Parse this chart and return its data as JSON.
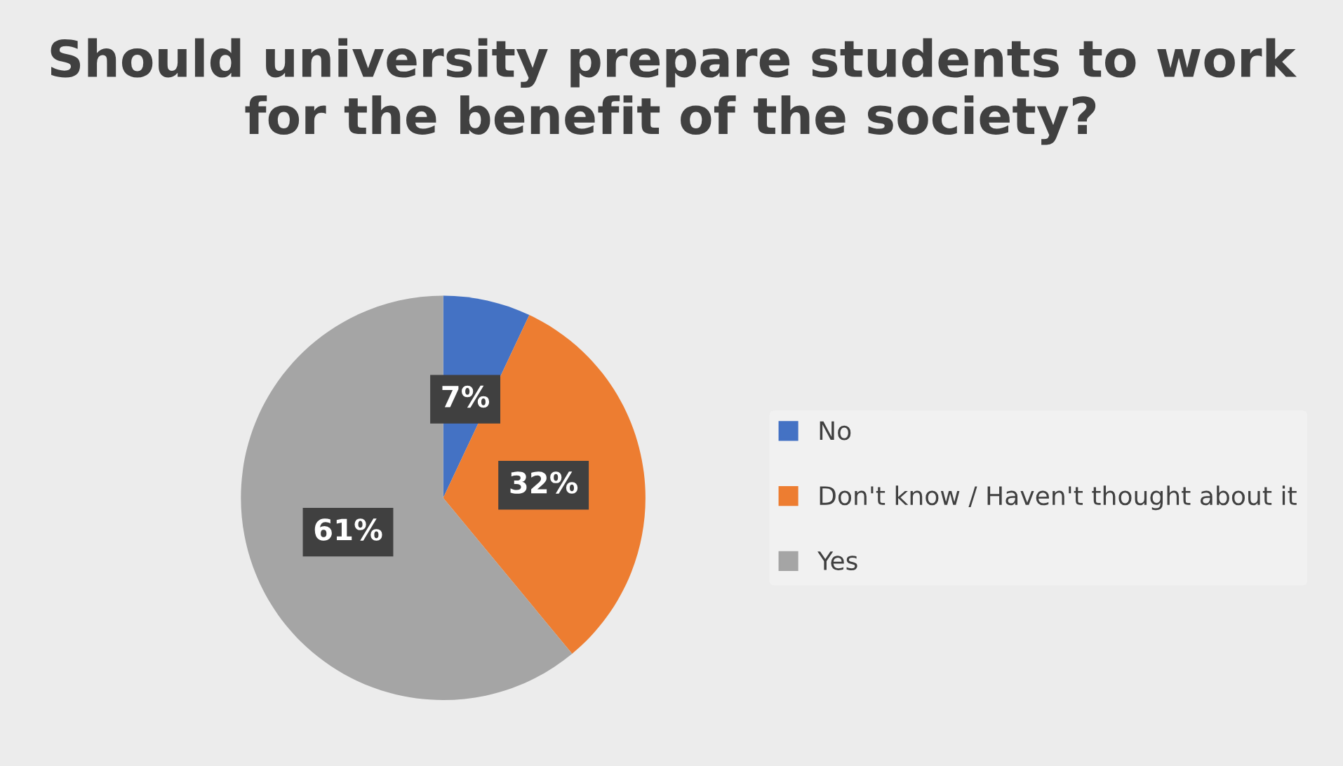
{
  "chart_data": {
    "type": "pie",
    "title": "Should university prepare students to work for the benefit of the society?",
    "categories": [
      "No",
      "Don't know / Haven't thought about it",
      "Yes"
    ],
    "values": [
      7,
      32,
      61
    ],
    "colors": [
      "#4472c4",
      "#ed7d31",
      "#a5a5a5"
    ],
    "value_labels": [
      "7%",
      "32%",
      "61%"
    ],
    "legend": "right"
  }
}
